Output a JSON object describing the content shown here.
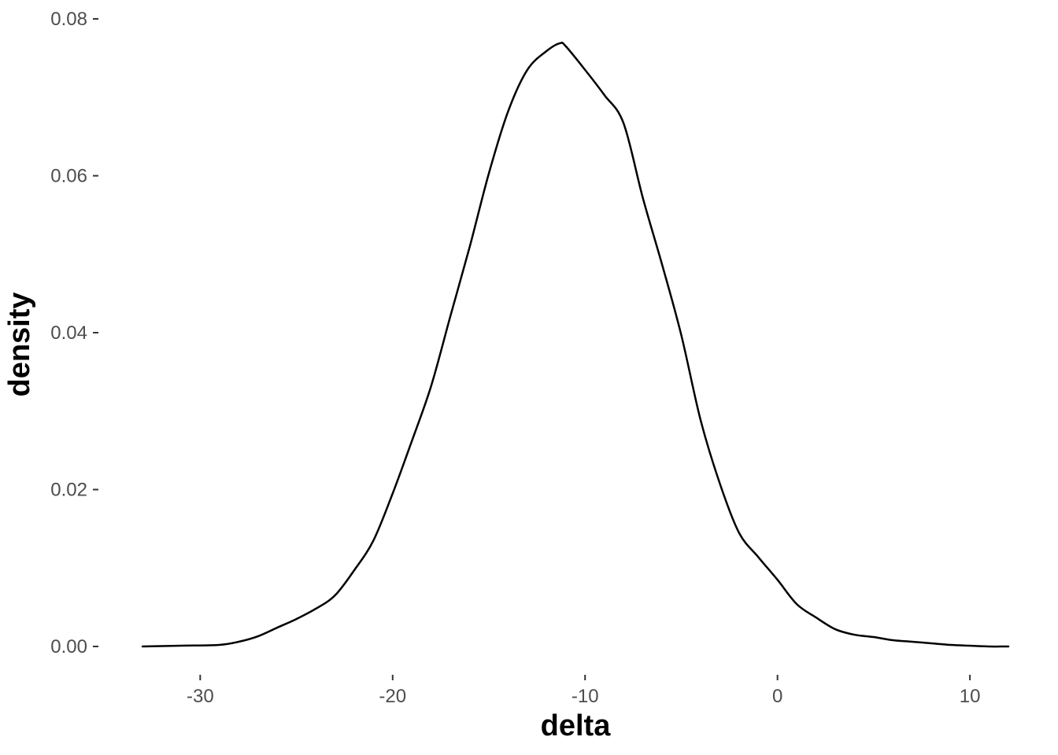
{
  "chart_data": {
    "type": "line",
    "title": "",
    "xlabel": "delta",
    "ylabel": "density",
    "xlim": [
      -33.0,
      12.0
    ],
    "ylim": [
      0.0,
      0.08
    ],
    "x_ticks": [
      -30,
      -20,
      -10,
      0,
      10
    ],
    "x_tick_labels": [
      "-30",
      "-20",
      "-10",
      "0",
      "10"
    ],
    "y_ticks": [
      0.0,
      0.02,
      0.04,
      0.06,
      0.08
    ],
    "y_tick_labels": [
      "0.00",
      "0.02",
      "0.04",
      "0.06",
      "0.08"
    ],
    "grid": false,
    "series": [
      {
        "color": "#000000",
        "x": [
          -33.0,
          -31.0,
          -29.0,
          -28.0,
          -27.0,
          -26.0,
          -25.0,
          -24.0,
          -23.0,
          -22.0,
          -21.0,
          -20.0,
          -19.0,
          -18.0,
          -17.0,
          -16.0,
          -15.0,
          -14.0,
          -13.0,
          -12.0,
          -11.3,
          -11.0,
          -10.0,
          -9.0,
          -8.0,
          -7.0,
          -6.0,
          -5.0,
          -4.0,
          -3.0,
          -2.0,
          -1.0,
          0.0,
          1.0,
          2.0,
          3.0,
          4.0,
          5.0,
          6.0,
          7.0,
          8.0,
          9.0,
          10.0,
          11.0,
          12.0
        ],
        "y": [
          0.0,
          0.0001,
          0.0002,
          0.0006,
          0.0013,
          0.0024,
          0.0035,
          0.0048,
          0.0065,
          0.0097,
          0.0135,
          0.0195,
          0.0262,
          0.0332,
          0.0421,
          0.0509,
          0.0603,
          0.0682,
          0.0735,
          0.0759,
          0.0769,
          0.0765,
          0.0735,
          0.0703,
          0.0667,
          0.0572,
          0.0487,
          0.0397,
          0.0289,
          0.0208,
          0.0145,
          0.0114,
          0.0085,
          0.0054,
          0.0037,
          0.0022,
          0.0015,
          0.0012,
          0.0008,
          0.0006,
          0.0004,
          0.0002,
          0.0001,
          0.0,
          0.0
        ]
      }
    ]
  }
}
